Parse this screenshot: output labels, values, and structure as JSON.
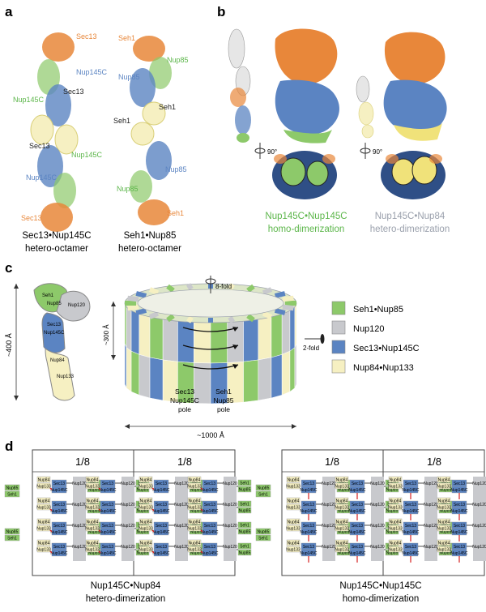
{
  "panels": {
    "a": {
      "letter": "a",
      "left_labels": [
        "Sec13",
        "Nup145C",
        "Sec13",
        "Nup145C",
        "Sec13",
        "Nup145C",
        "Sec13"
      ],
      "right_labels": [
        "Seh1",
        "Nup85",
        "Nup85",
        "Seh1",
        "Seh1",
        "Nup85",
        "Nup85",
        "Seh1"
      ],
      "left_caption": [
        "Sec13•Nup145C",
        "hetero-octamer"
      ],
      "right_caption": [
        "Seh1•Nup85",
        "hetero-octamer"
      ]
    },
    "b": {
      "letter": "b",
      "rotation": "90°",
      "left_caption": [
        "Nup145C•Nup145C",
        "homo-dimerization"
      ],
      "right_caption": [
        "Nup145C•Nup84",
        "hetero-dimerization"
      ]
    },
    "c": {
      "letter": "c",
      "y_arm_labels": [
        "Seh1",
        "Nup85",
        "Nup120",
        "Sec13",
        "Nup145C",
        "Nup84",
        "Nup133"
      ],
      "height_label": "~400 Å",
      "ring_height": "~300 Å",
      "ring_width": "~1000 Å",
      "fold8": "8-fold",
      "fold2": "2-fold",
      "pole_left": [
        "Sec13",
        "Nup145C",
        "pole"
      ],
      "pole_right": [
        "Seh1",
        "Nup85",
        "pole"
      ],
      "legend": [
        {
          "label": "Seh1•Nup85",
          "color": "#8dc96a"
        },
        {
          "label": "Nup120",
          "color": "#c8c9cd"
        },
        {
          "label": "Sec13•Nup145C",
          "color": "#5b84c2"
        },
        {
          "label": "Nup84•Nup133",
          "color": "#f6f0c2"
        }
      ]
    },
    "d": {
      "letter": "d",
      "fraction": "1/8",
      "tiny": {
        "seh1": "Seh1",
        "nup85": "Nup85",
        "nup120": "Nup120",
        "sec13": "Sec13",
        "nup145c": "Nup145C",
        "nup84": "Nup84",
        "nup133": "Nup133"
      },
      "left_caption": [
        "Nup145C•Nup84",
        "hetero-dimerization"
      ],
      "right_caption": [
        "Nup145C•Nup145C",
        "homo-dimerization"
      ]
    }
  },
  "colors": {
    "orange": "#e8873a",
    "blue": "#5b84c2",
    "green": "#8dc96a",
    "yellow": "#f6f0c2",
    "grey": "#c8c9cd",
    "green_text": "#5cb64a",
    "grey_text": "#9aa0ac"
  }
}
